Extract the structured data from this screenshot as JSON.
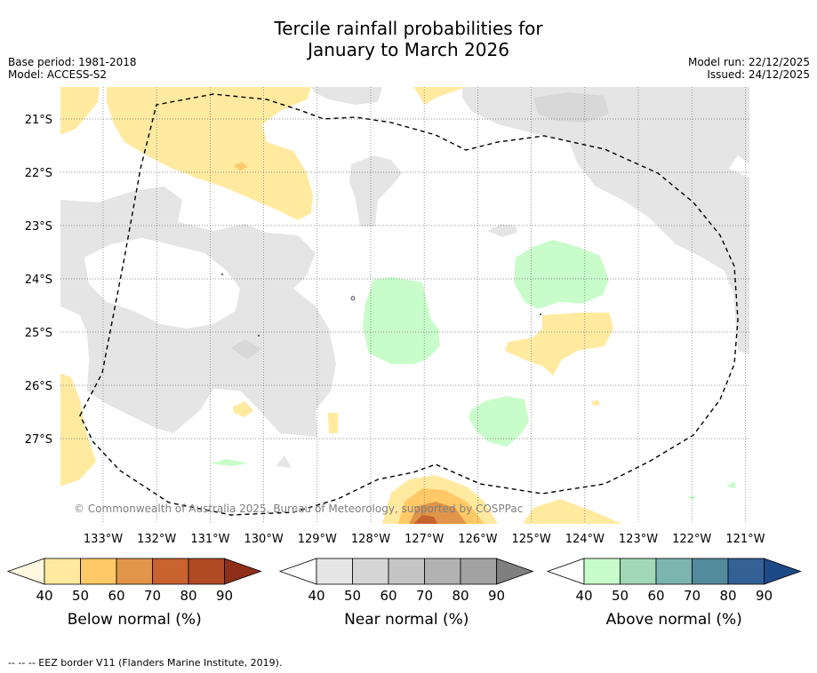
{
  "title_line1": "Tercile rainfall probabilities for",
  "title_line2": "January to March 2026",
  "base_period": "Base period: 1981-2018",
  "model": "Model: ACCESS-S2",
  "model_run": "Model run: 22/12/2025",
  "issued": "Issued: 24/12/2025",
  "copyright": "© Commonwealth of Australia 2025, Bureau of Meteorology, supported by COSPPac",
  "latitudes": [
    "21°S",
    "22°S",
    "23°S",
    "24°S",
    "25°S",
    "26°S",
    "27°S"
  ],
  "longitudes": [
    "133°W",
    "132°W",
    "131°W",
    "130°W",
    "129°W",
    "128°W",
    "127°W",
    "126°W",
    "125°W",
    "124°W",
    "123°W",
    "122°W",
    "121°W"
  ],
  "colorbars": [
    {
      "title": "Below normal (%)",
      "ticks": [
        "40",
        "50",
        "60",
        "70",
        "80",
        "90"
      ],
      "colors": [
        "#fff7e0",
        "#ffeaa0",
        "#fec966",
        "#e0954b",
        "#c8622f",
        "#b04a25",
        "#8f2e19"
      ]
    },
    {
      "title": "Near normal (%)",
      "ticks": [
        "40",
        "50",
        "60",
        "70",
        "80",
        "90"
      ],
      "colors": [
        "#ffffff",
        "#e5e5e5",
        "#d5d5d5",
        "#c5c5c5",
        "#b2b2b2",
        "#a2a2a2",
        "#7f7f7f"
      ]
    },
    {
      "title": "Above normal (%)",
      "ticks": [
        "40",
        "50",
        "60",
        "70",
        "80",
        "90"
      ],
      "colors": [
        "#ffffff",
        "#c8fcca",
        "#a2d8b8",
        "#7cb4b0",
        "#548b9c",
        "#336196",
        "#1c4a86"
      ]
    }
  ],
  "footer": "-- -- -- EEZ border V11 (Flanders Marine Institute, 2019).",
  "colors": {
    "below_50": "#ffeaa0",
    "below_60": "#fec966",
    "below_70": "#e0954b",
    "below_80": "#c8622f",
    "near_50": "#e5e5e5",
    "above_50": "#c8fcca"
  }
}
